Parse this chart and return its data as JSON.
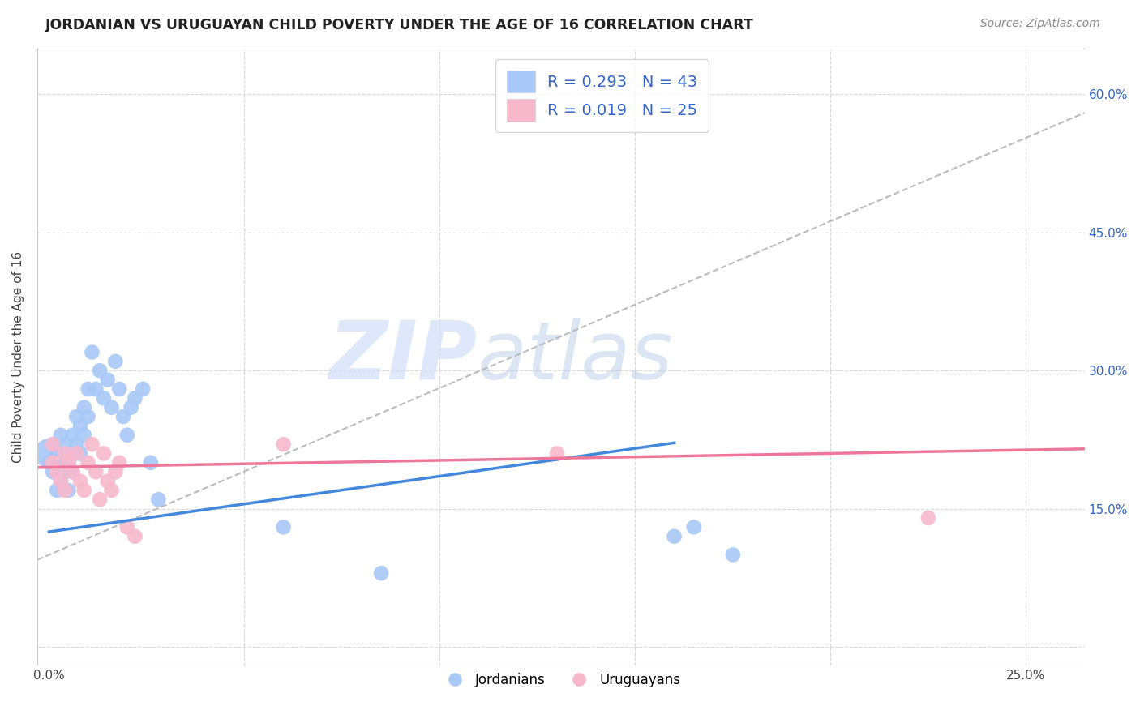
{
  "title": "JORDANIAN VS URUGUAYAN CHILD POVERTY UNDER THE AGE OF 16 CORRELATION CHART",
  "source": "Source: ZipAtlas.com",
  "ylabel": "Child Poverty Under the Age of 16",
  "xlim": [
    -0.003,
    0.265
  ],
  "ylim": [
    -0.02,
    0.65
  ],
  "background_color": "#ffffff",
  "grid_color": "#d8d8d8",
  "jordan_color": "#a8c8f8",
  "uruguay_color": "#f8b8cc",
  "jordan_R": 0.293,
  "jordan_N": 43,
  "uruguay_R": 0.019,
  "uruguay_N": 25,
  "jordan_line_color": "#4488dd",
  "uruguay_line_color": "#ee7799",
  "dashed_line_color": "#bbbbbb",
  "legend_text_color": "#3366cc",
  "watermark_zip": "ZIP",
  "watermark_atlas": "atlas",
  "jordanians_x": [
    0.0,
    0.001,
    0.001,
    0.002,
    0.002,
    0.003,
    0.003,
    0.003,
    0.004,
    0.004,
    0.005,
    0.005,
    0.006,
    0.006,
    0.006,
    0.007,
    0.007,
    0.008,
    0.008,
    0.009,
    0.009,
    0.01,
    0.01,
    0.011,
    0.012,
    0.013,
    0.014,
    0.015,
    0.016,
    0.017,
    0.018,
    0.019,
    0.02,
    0.021,
    0.022,
    0.024,
    0.026,
    0.028,
    0.06,
    0.085,
    0.16,
    0.165,
    0.175
  ],
  "jordanians_y": [
    0.2,
    0.19,
    0.22,
    0.17,
    0.21,
    0.18,
    0.2,
    0.23,
    0.19,
    0.22,
    0.17,
    0.2,
    0.19,
    0.21,
    0.23,
    0.22,
    0.25,
    0.21,
    0.24,
    0.23,
    0.26,
    0.28,
    0.25,
    0.32,
    0.28,
    0.3,
    0.27,
    0.29,
    0.26,
    0.31,
    0.28,
    0.25,
    0.23,
    0.26,
    0.27,
    0.28,
    0.2,
    0.16,
    0.13,
    0.08,
    0.12,
    0.13,
    0.1
  ],
  "jordanians_big_x": [
    0.0
  ],
  "jordanians_big_y": [
    0.21
  ],
  "uruguayans_x": [
    0.001,
    0.001,
    0.002,
    0.003,
    0.004,
    0.004,
    0.005,
    0.006,
    0.007,
    0.008,
    0.009,
    0.01,
    0.011,
    0.012,
    0.013,
    0.014,
    0.015,
    0.016,
    0.017,
    0.018,
    0.02,
    0.022,
    0.06,
    0.13,
    0.225
  ],
  "uruguayans_y": [
    0.2,
    0.22,
    0.19,
    0.18,
    0.21,
    0.17,
    0.2,
    0.19,
    0.21,
    0.18,
    0.17,
    0.2,
    0.22,
    0.19,
    0.16,
    0.21,
    0.18,
    0.17,
    0.19,
    0.2,
    0.13,
    0.12,
    0.22,
    0.21,
    0.14
  ],
  "jordan_trendline": [
    0.0,
    0.265,
    0.125,
    0.285
  ],
  "uruguay_trendline": [
    0.0,
    0.265,
    0.195,
    0.215
  ],
  "dashed_trendline": [
    0.0,
    0.265,
    0.1,
    0.58
  ],
  "x_ticks": [
    0.0,
    0.05,
    0.1,
    0.15,
    0.2,
    0.25
  ],
  "y_ticks": [
    0.0,
    0.15,
    0.3,
    0.45,
    0.6
  ],
  "y_tick_labels_right": [
    "",
    "15.0%",
    "30.0%",
    "45.0%",
    "60.0%"
  ]
}
